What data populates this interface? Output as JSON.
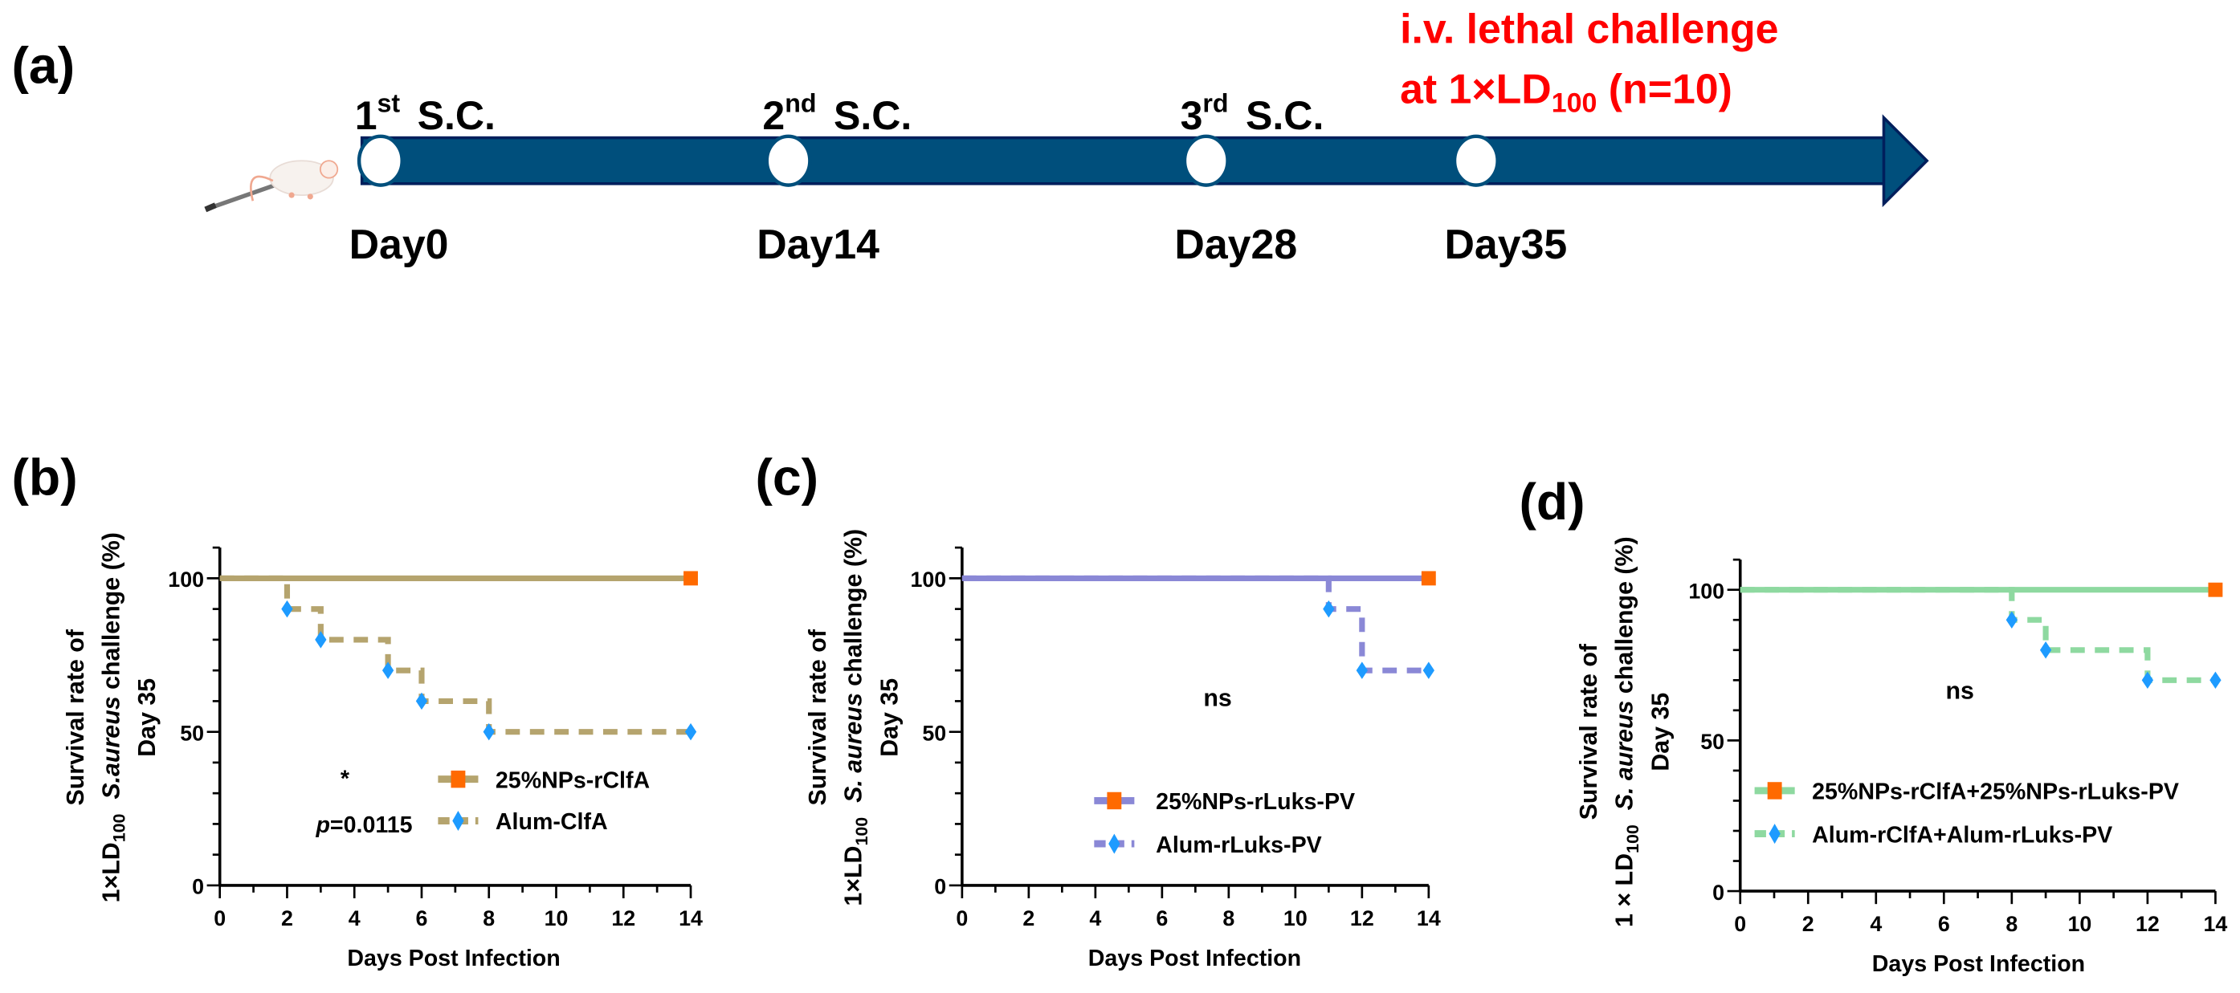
{
  "panel_labels": {
    "a": "(a)",
    "b": "(b)",
    "c": "(c)",
    "d": "(d)"
  },
  "timeline": {
    "events": [
      {
        "ordinal": "1",
        "sup": "st",
        "route": "S.C.",
        "day": "Day0"
      },
      {
        "ordinal": "2",
        "sup": "nd",
        "route": "S.C.",
        "day": "Day14"
      },
      {
        "ordinal": "3",
        "sup": "rd",
        "route": "S.C.",
        "day": "Day28"
      },
      {
        "day": "Day35"
      }
    ],
    "challenge_line1": "i.v. lethal challenge",
    "challenge_line2_prefix": "at 1×LD",
    "challenge_line2_sub": "100",
    "challenge_line2_suffix": " (n=10)",
    "colors": {
      "arrow": "#004f7c",
      "challenge_text": "#ff0000"
    }
  },
  "chart_data": [
    {
      "type": "line",
      "subtype": "kaplan-meier-step",
      "panel": "b",
      "xlabel": "Days Post Infection",
      "ylabel_line1": "Survival rate of",
      "ylabel_prefix": "1×LD",
      "ylabel_sub": "100",
      "ylabel_italic": "S.aureus",
      "ylabel_rest": " challenge (%)",
      "ylabel_line3": "Day 35",
      "xlim": [
        0,
        14
      ],
      "ylim": [
        0,
        110
      ],
      "xticks": [
        "0",
        "2",
        "4",
        "6",
        "8",
        "10",
        "12",
        "14"
      ],
      "yticks": [
        "0",
        "50",
        "100"
      ],
      "annotation_star": "*",
      "annotation_p_italic": "p",
      "annotation_p_value": "=0.0115",
      "line_color": "#b5a46e",
      "legend_placement": "lower-right",
      "series": [
        {
          "name": "25%NPs-rClfA",
          "style": "solid",
          "marker": "square",
          "marker_color": "#ff6a00",
          "x": [
            0,
            14
          ],
          "y": [
            100,
            100
          ],
          "marker_x": [
            14
          ],
          "marker_y": [
            100
          ]
        },
        {
          "name": "Alum-ClfA",
          "style": "dashed",
          "marker": "diamond",
          "marker_color": "#1e9bff",
          "x": [
            0,
            2,
            3,
            5,
            6,
            8,
            14
          ],
          "y": [
            100,
            90,
            80,
            70,
            60,
            50,
            50
          ],
          "marker_x": [
            2,
            3,
            5,
            6,
            8,
            14
          ],
          "marker_y": [
            90,
            80,
            70,
            60,
            50,
            50
          ]
        }
      ]
    },
    {
      "type": "line",
      "subtype": "kaplan-meier-step",
      "panel": "c",
      "xlabel": "Days Post Infection",
      "ylabel_line1": "Survival rate of",
      "ylabel_prefix": "1×LD",
      "ylabel_sub": "100",
      "ylabel_italic": "S. aureus",
      "ylabel_rest": " challenge (%)",
      "ylabel_line3": "Day 35",
      "xlim": [
        0,
        14
      ],
      "ylim": [
        0,
        110
      ],
      "xticks": [
        "0",
        "2",
        "4",
        "6",
        "8",
        "10",
        "12",
        "14"
      ],
      "yticks": [
        "0",
        "50",
        "100"
      ],
      "annotation_ns": "ns",
      "line_color": "#8a88d6",
      "legend_placement": "center",
      "series": [
        {
          "name": "25%NPs-rLuks-PV",
          "style": "solid",
          "marker": "square",
          "marker_color": "#ff6a00",
          "x": [
            0,
            14
          ],
          "y": [
            100,
            100
          ],
          "marker_x": [
            14
          ],
          "marker_y": [
            100
          ]
        },
        {
          "name": "Alum-rLuks-PV",
          "style": "dashed",
          "marker": "diamond",
          "marker_color": "#1e9bff",
          "x": [
            0,
            11,
            12,
            14
          ],
          "y": [
            100,
            90,
            70,
            70
          ],
          "marker_x": [
            11,
            12,
            14
          ],
          "marker_y": [
            90,
            70,
            70
          ]
        }
      ]
    },
    {
      "type": "line",
      "subtype": "kaplan-meier-step",
      "panel": "d",
      "xlabel": "Days Post Infection",
      "ylabel_line1": "Survival rate of",
      "ylabel_prefix": "1 × LD",
      "ylabel_sub": "100",
      "ylabel_italic": "S. aureus",
      "ylabel_rest": " challenge (%)",
      "ylabel_line3": "Day 35",
      "xlim": [
        0,
        14
      ],
      "ylim": [
        0,
        110
      ],
      "xticks": [
        "0",
        "2",
        "4",
        "6",
        "8",
        "10",
        "12",
        "14"
      ],
      "yticks": [
        "0",
        "50",
        "100"
      ],
      "annotation_ns": "ns",
      "line_color": "#8ed9a0",
      "legend_placement": "lower-left",
      "series": [
        {
          "name": "25%NPs-rClfA+25%NPs-rLuks-PV",
          "style": "solid",
          "marker": "square",
          "marker_color": "#ff6a00",
          "x": [
            0,
            14
          ],
          "y": [
            100,
            100
          ],
          "marker_x": [
            14
          ],
          "marker_y": [
            100
          ]
        },
        {
          "name": "Alum-rClfA+Alum-rLuks-PV",
          "style": "dashed",
          "marker": "diamond",
          "marker_color": "#1e9bff",
          "x": [
            0,
            8,
            9,
            12,
            14
          ],
          "y": [
            100,
            90,
            80,
            70,
            70
          ],
          "marker_x": [
            8,
            9,
            12,
            14
          ],
          "marker_y": [
            90,
            80,
            70,
            70
          ]
        }
      ]
    }
  ]
}
